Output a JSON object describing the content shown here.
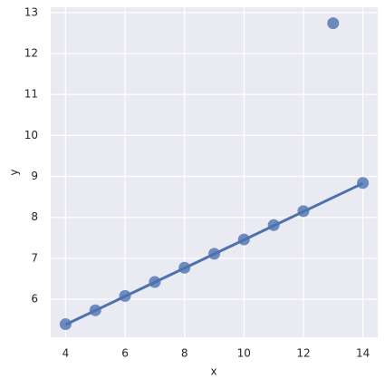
{
  "chart_data": {
    "type": "scatter",
    "x_label": "x",
    "y_label": "y",
    "series": [
      {
        "name": "y",
        "color": "#4c72b0",
        "x": [
          10,
          8,
          13,
          9,
          11,
          14,
          6,
          4,
          12,
          7,
          5
        ],
        "values": [
          7.46,
          6.77,
          12.74,
          7.11,
          7.81,
          8.84,
          6.08,
          5.39,
          8.15,
          6.42,
          5.73
        ]
      }
    ],
    "fit": {
      "x": [
        4,
        14
      ],
      "values": [
        5.38,
        8.83
      ],
      "color": "#4c72b0"
    },
    "xlim": [
      3.5,
      14.5
    ],
    "ylim": [
      5.07,
      13.13
    ],
    "xticks": [
      4,
      6,
      8,
      10,
      12,
      14
    ],
    "yticks": [
      6,
      7,
      8,
      9,
      10,
      11,
      12,
      13
    ],
    "grid": true
  }
}
